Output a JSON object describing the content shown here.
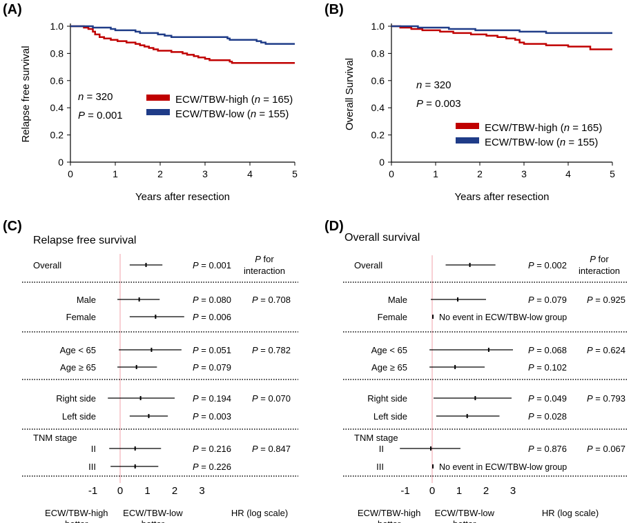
{
  "chart_data": [
    {
      "panel": "(A)",
      "type": "line",
      "step": true,
      "ylabel": "Relapse free survival",
      "xlabel": "Years after resection",
      "xlim": [
        0,
        5
      ],
      "ylim": [
        0,
        1.0
      ],
      "xticks": [
        "0",
        "1",
        "2",
        "3",
        "4",
        "5"
      ],
      "yticks": [
        "0",
        "0.2",
        "0.4",
        "0.6",
        "0.8",
        "1.0"
      ],
      "stats": {
        "n_label": "n",
        "n_value": " = 320",
        "p_label": "P",
        "p_value": " = 0.001"
      },
      "legend_position": "center-right",
      "series": [
        {
          "name": "ECW/TBW-high",
          "name_n": "n",
          "name_value": " = 165",
          "color": "#c00000",
          "x": [
            0,
            0.3,
            0.4,
            0.5,
            0.55,
            0.65,
            0.75,
            0.9,
            1.05,
            1.25,
            1.45,
            1.55,
            1.65,
            1.75,
            1.85,
            1.95,
            2.25,
            2.5,
            2.6,
            2.75,
            2.85,
            3.0,
            3.1,
            3.55,
            3.6,
            5.0
          ],
          "y": [
            1.0,
            0.99,
            0.98,
            0.96,
            0.94,
            0.92,
            0.91,
            0.9,
            0.89,
            0.88,
            0.87,
            0.86,
            0.85,
            0.84,
            0.83,
            0.82,
            0.81,
            0.8,
            0.79,
            0.78,
            0.77,
            0.76,
            0.75,
            0.74,
            0.73,
            0.73
          ]
        },
        {
          "name": "ECW/TBW-low",
          "name_n": "n",
          "name_value": " = 155",
          "color": "#1f3c88",
          "x": [
            0,
            0.5,
            0.9,
            1.0,
            1.45,
            1.55,
            1.95,
            2.1,
            2.25,
            3.5,
            3.55,
            4.15,
            4.25,
            4.35,
            5.0
          ],
          "y": [
            1.0,
            0.99,
            0.98,
            0.97,
            0.96,
            0.95,
            0.94,
            0.93,
            0.92,
            0.91,
            0.9,
            0.89,
            0.88,
            0.87,
            0.87
          ]
        }
      ]
    },
    {
      "panel": "(B)",
      "type": "line",
      "step": true,
      "ylabel": "Overall  Survival",
      "xlabel": "Years after resection",
      "xlim": [
        0,
        5
      ],
      "ylim": [
        0,
        1.0
      ],
      "xticks": [
        "0",
        "1",
        "2",
        "3",
        "4",
        "5"
      ],
      "yticks": [
        "0",
        "0.2",
        "0.4",
        "0.6",
        "0.8",
        "1.0"
      ],
      "stats": {
        "n_label": "n",
        "n_value": " = 320",
        "p_label": "P",
        "p_value": " = 0.003"
      },
      "legend_position": "bottom-right",
      "series": [
        {
          "name": "ECW/TBW-high",
          "name_n": "n",
          "name_value": " = 165",
          "color": "#c00000",
          "x": [
            0,
            0.2,
            0.45,
            0.7,
            1.1,
            1.4,
            1.8,
            2.15,
            2.4,
            2.6,
            2.8,
            2.9,
            3.0,
            3.5,
            4.0,
            4.5,
            5.0
          ],
          "y": [
            1.0,
            0.99,
            0.98,
            0.97,
            0.96,
            0.95,
            0.94,
            0.93,
            0.92,
            0.91,
            0.9,
            0.88,
            0.87,
            0.86,
            0.85,
            0.83,
            0.83
          ]
        },
        {
          "name": "ECW/TBW-low",
          "name_n": "n",
          "name_value": " = 155",
          "color": "#1f3c88",
          "x": [
            0,
            0.6,
            1.3,
            1.9,
            2.9,
            3.5,
            5.0
          ],
          "y": [
            1.0,
            0.99,
            0.98,
            0.97,
            0.96,
            0.95,
            0.95
          ]
        }
      ]
    },
    {
      "panel": "(C)",
      "type": "forest",
      "title": "Relapse free survival",
      "xaxis_label": "HR (log scale)",
      "xticks": [
        -1,
        0,
        1,
        2,
        3
      ],
      "left_label": [
        "ECW/TBW-high",
        "better"
      ],
      "right_label": [
        "ECW/TBW-low",
        "better"
      ],
      "interaction_header": [
        "P for",
        "interaction"
      ],
      "rows": [
        {
          "label": "Overall",
          "lo": 0.35,
          "mid": 0.95,
          "hi": 1.55,
          "p": " = 0.001",
          "pint": ""
        },
        {
          "label": "Male",
          "lo": -0.1,
          "mid": 0.7,
          "hi": 1.45,
          "p": " = 0.080",
          "pint": " = 0.708"
        },
        {
          "label": "Female",
          "lo": 0.35,
          "mid": 1.3,
          "hi": 2.35,
          "p": " = 0.006",
          "pint": ""
        },
        {
          "label": "Age < 65",
          "lo": -0.05,
          "mid": 1.15,
          "hi": 2.25,
          "p": " = 0.051",
          "pint": " = 0.782"
        },
        {
          "label": "Age ≥ 65",
          "lo": -0.1,
          "mid": 0.6,
          "hi": 1.35,
          "p": " = 0.079",
          "pint": ""
        },
        {
          "label": "Right side",
          "lo": -0.45,
          "mid": 0.75,
          "hi": 2.0,
          "p": " = 0.194",
          "pint": " = 0.070"
        },
        {
          "label": "Left side",
          "lo": 0.35,
          "mid": 1.05,
          "hi": 1.75,
          "p": " = 0.003",
          "pint": ""
        },
        {
          "label": "TNM stage",
          "header": true
        },
        {
          "label": "II",
          "lo": -0.4,
          "mid": 0.55,
          "hi": 1.5,
          "p": " = 0.216",
          "pint": " = 0.847"
        },
        {
          "label": "III",
          "lo": -0.35,
          "mid": 0.55,
          "hi": 1.4,
          "p": " = 0.226",
          "pint": ""
        }
      ]
    },
    {
      "panel": "(D)",
      "type": "forest",
      "title": "Overall survival",
      "xaxis_label": "HR (log scale)",
      "xticks": [
        -1,
        0,
        1,
        2,
        3
      ],
      "left_label": [
        "ECW/TBW-high",
        "better"
      ],
      "right_label": [
        "ECW/TBW-low",
        "better"
      ],
      "interaction_header": [
        "P for",
        "interaction"
      ],
      "rows": [
        {
          "label": "Overall",
          "lo": 0.5,
          "mid": 1.4,
          "hi": 2.35,
          "p": " = 0.002",
          "pint": ""
        },
        {
          "label": "Male",
          "lo": -0.05,
          "mid": 0.95,
          "hi": 2.0,
          "p": " = 0.079",
          "pint": " = 0.925"
        },
        {
          "label": "Female",
          "no_event": "No event in ECW/TBW-low group"
        },
        {
          "label": "Age < 65",
          "lo": -0.1,
          "mid": 2.1,
          "hi": 3.0,
          "p": " = 0.068",
          "pint": " = 0.624"
        },
        {
          "label": "Age ≥ 65",
          "lo": -0.1,
          "mid": 0.85,
          "hi": 1.95,
          "p": " = 0.102",
          "pint": ""
        },
        {
          "label": "Right side",
          "lo": 0.05,
          "mid": 1.6,
          "hi": 2.95,
          "p": " = 0.049",
          "pint": " = 0.793"
        },
        {
          "label": "Left side",
          "lo": 0.15,
          "mid": 1.3,
          "hi": 2.5,
          "p": " = 0.028",
          "pint": ""
        },
        {
          "label": "TNM stage",
          "header": true
        },
        {
          "label": "II",
          "lo": -1.2,
          "mid": -0.05,
          "hi": 1.05,
          "p": " = 0.876",
          "pint": " = 0.067"
        },
        {
          "label": "III",
          "no_event": "No event in ECW/TBW-low group"
        }
      ]
    }
  ],
  "p_symbol": "P"
}
